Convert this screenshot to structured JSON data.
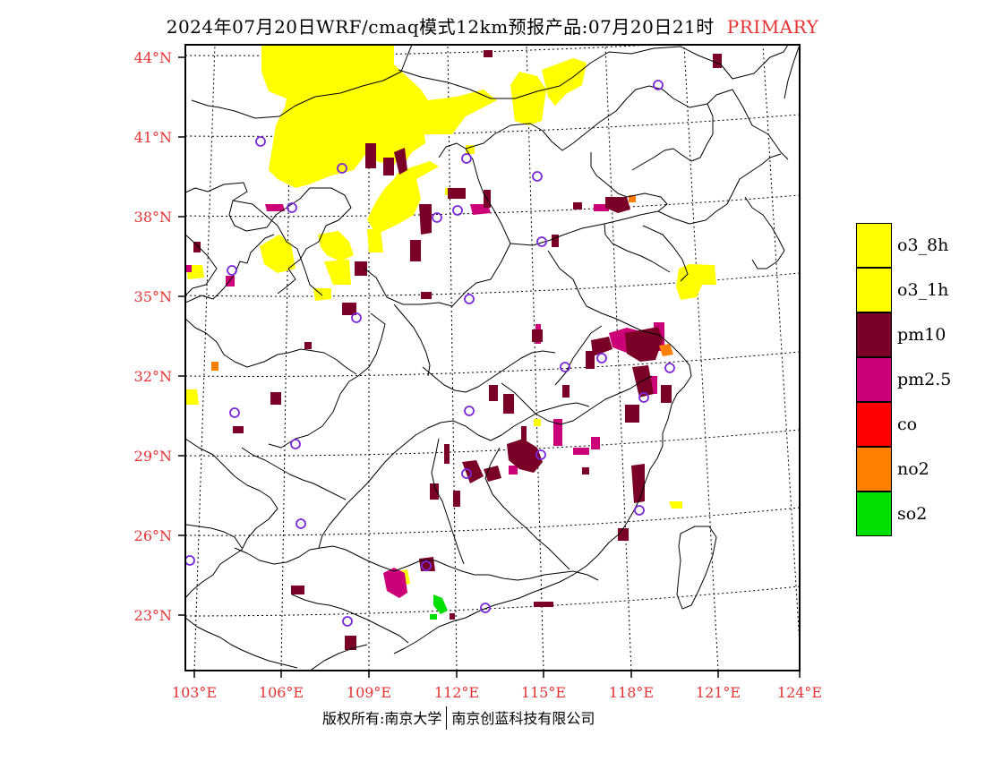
{
  "title": {
    "main": "2024年07月20日WRF/cmaq模式12km预报产品:07月20日21时",
    "tag": "PRIMARY"
  },
  "lat_labels": [
    "44°N",
    "41°N",
    "38°N",
    "35°N",
    "32°N",
    "29°N",
    "26°N",
    "23°N"
  ],
  "lon_labels": [
    "103°E",
    "106°E",
    "109°E",
    "112°E",
    "115°E",
    "118°E",
    "121°E",
    "124°E"
  ],
  "legend": [
    {
      "label": "o3_8h",
      "color": "#ffff00"
    },
    {
      "label": "o3_1h",
      "color": "#ffff00"
    },
    {
      "label": "pm10",
      "color": "#7a0028"
    },
    {
      "label": "pm2.5",
      "color": "#cc0077"
    },
    {
      "label": "co",
      "color": "#ff0000"
    },
    {
      "label": "no2",
      "color": "#ff7f00"
    },
    {
      "label": "so2",
      "color": "#00e000"
    }
  ],
  "colors": {
    "o3": "#ffff00",
    "pm10": "#7a0028",
    "pm25": "#cc0077",
    "no2": "#ff7f00",
    "so2": "#00e000",
    "station_marker": "#7a28d8",
    "axis_label": "#e53333"
  },
  "footer": {
    "left": "版权所有:南京大学",
    "right": "南京创蓝科技有限公司"
  }
}
